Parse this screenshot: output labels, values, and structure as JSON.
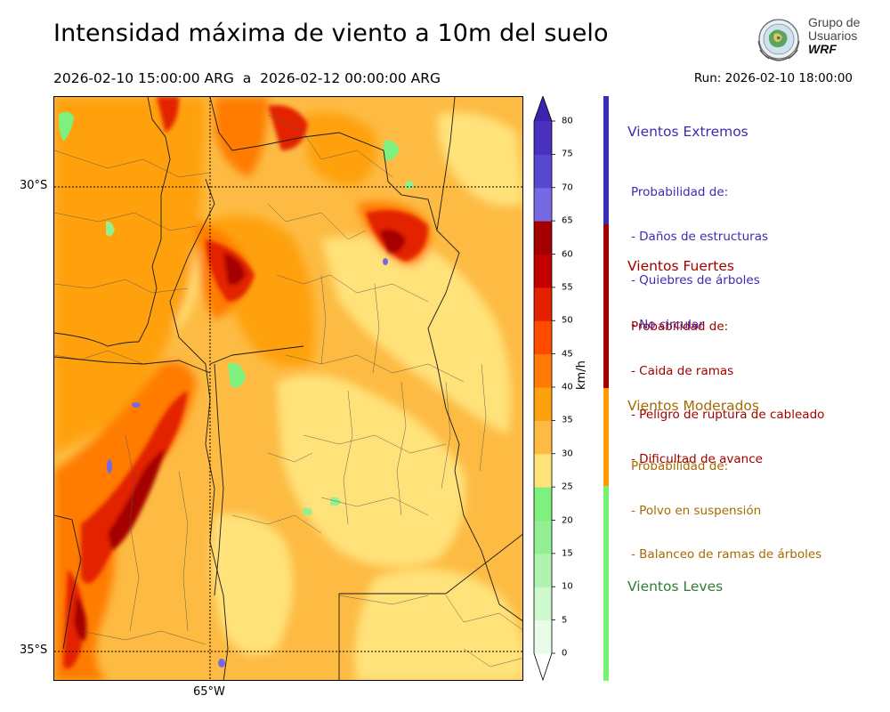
{
  "title": "Intensidad máxima de viento a 10m del suelo",
  "period": "2026-02-10 15:00:00 ARG  a  2026-02-12 00:00:00 ARG",
  "run": "Run: 2026-02-10 18:00:00",
  "logo": {
    "line1": "Grupo de",
    "line2": "Usuarios",
    "line3": "WRF"
  },
  "map": {
    "lat_labels": [
      "30°S",
      "35°S"
    ],
    "lon_labels": [
      "65°W"
    ]
  },
  "colorbar": {
    "unit": "km/h",
    "ticks": [
      "0",
      "5",
      "10",
      "15",
      "20",
      "25",
      "30",
      "35",
      "40",
      "45",
      "50",
      "55",
      "60",
      "65",
      "70",
      "75",
      "80"
    ],
    "colors": [
      "#e8fce8",
      "#cdf9cd",
      "#b0f3b0",
      "#92ef92",
      "#7ef07e",
      "#ffe27a",
      "#fdbb43",
      "#fea10f",
      "#ff7b06",
      "#ff4b00",
      "#e32000",
      "#c30000",
      "#a40000",
      "#7769e3",
      "#5848d0",
      "#4a30bd"
    ],
    "colors_over": "#3c23b0"
  },
  "categories": [
    {
      "title": "Vientos Extremos",
      "color": "#3a2db1",
      "desc": [
        "Probabilidad de:",
        "- Daños de estructuras",
        "- Quiebres de árboles",
        "- No circular"
      ]
    },
    {
      "title": "Vientos Fuertes",
      "color": "#a00000",
      "desc": [
        "Probabilidad de:",
        "- Caida de ramas",
        "- Peligro de ruptura de cableado",
        "- Dificultad de avance"
      ]
    },
    {
      "title": "Vientos Moderados",
      "color": "#a66a00",
      "desc": [
        "Probabilidad de:",
        "- Polvo en suspensión",
        "- Balanceo de ramas de árboles"
      ]
    },
    {
      "title": "Vientos Leves",
      "color": "#2e7d32",
      "desc": []
    }
  ],
  "bar_colors": {
    "extremos": "#3a2db1",
    "fuertes": "#a00000",
    "moderados": "#ff9a00",
    "leves": "#72f472"
  }
}
